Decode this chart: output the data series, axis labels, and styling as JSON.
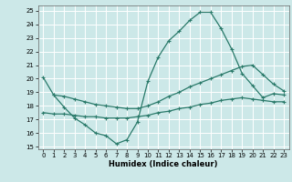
{
  "title": "",
  "xlabel": "Humidex (Indice chaleur)",
  "ylabel": "",
  "bg_color": "#cce8e8",
  "grid_color": "#ffffff",
  "line_color": "#2a7a6a",
  "xlim": [
    -0.5,
    23.5
  ],
  "ylim": [
    14.8,
    25.4
  ],
  "xticks": [
    0,
    1,
    2,
    3,
    4,
    5,
    6,
    7,
    8,
    9,
    10,
    11,
    12,
    13,
    14,
    15,
    16,
    17,
    18,
    19,
    20,
    21,
    22,
    23
  ],
  "yticks": [
    15,
    16,
    17,
    18,
    19,
    20,
    21,
    22,
    23,
    24,
    25
  ],
  "curve1_x": [
    0,
    1,
    2,
    3,
    4,
    5,
    6,
    7,
    8,
    9,
    10,
    11,
    12,
    13,
    14,
    15,
    16,
    17,
    18,
    19,
    20,
    21,
    22,
    23
  ],
  "curve1_y": [
    20.1,
    18.8,
    17.9,
    17.1,
    16.6,
    16.0,
    15.8,
    15.2,
    15.5,
    16.8,
    19.8,
    21.6,
    22.8,
    23.5,
    24.3,
    24.9,
    24.9,
    23.7,
    22.2,
    20.4,
    19.5,
    18.6,
    18.9,
    18.8
  ],
  "curve2_x": [
    1,
    2,
    3,
    4,
    5,
    6,
    7,
    8,
    9,
    10,
    11,
    12,
    13,
    14,
    15,
    16,
    17,
    18,
    19,
    20,
    21,
    22,
    23
  ],
  "curve2_y": [
    18.8,
    18.7,
    18.5,
    18.3,
    18.1,
    18.0,
    17.9,
    17.8,
    17.8,
    18.0,
    18.3,
    18.7,
    19.0,
    19.4,
    19.7,
    20.0,
    20.3,
    20.6,
    20.9,
    21.0,
    20.3,
    19.6,
    19.1
  ],
  "curve3_x": [
    0,
    1,
    2,
    3,
    4,
    5,
    6,
    7,
    8,
    9,
    10,
    11,
    12,
    13,
    14,
    15,
    16,
    17,
    18,
    19,
    20,
    21,
    22,
    23
  ],
  "curve3_y": [
    17.5,
    17.4,
    17.4,
    17.3,
    17.2,
    17.2,
    17.1,
    17.1,
    17.1,
    17.2,
    17.3,
    17.5,
    17.6,
    17.8,
    17.9,
    18.1,
    18.2,
    18.4,
    18.5,
    18.6,
    18.5,
    18.4,
    18.3,
    18.3
  ]
}
